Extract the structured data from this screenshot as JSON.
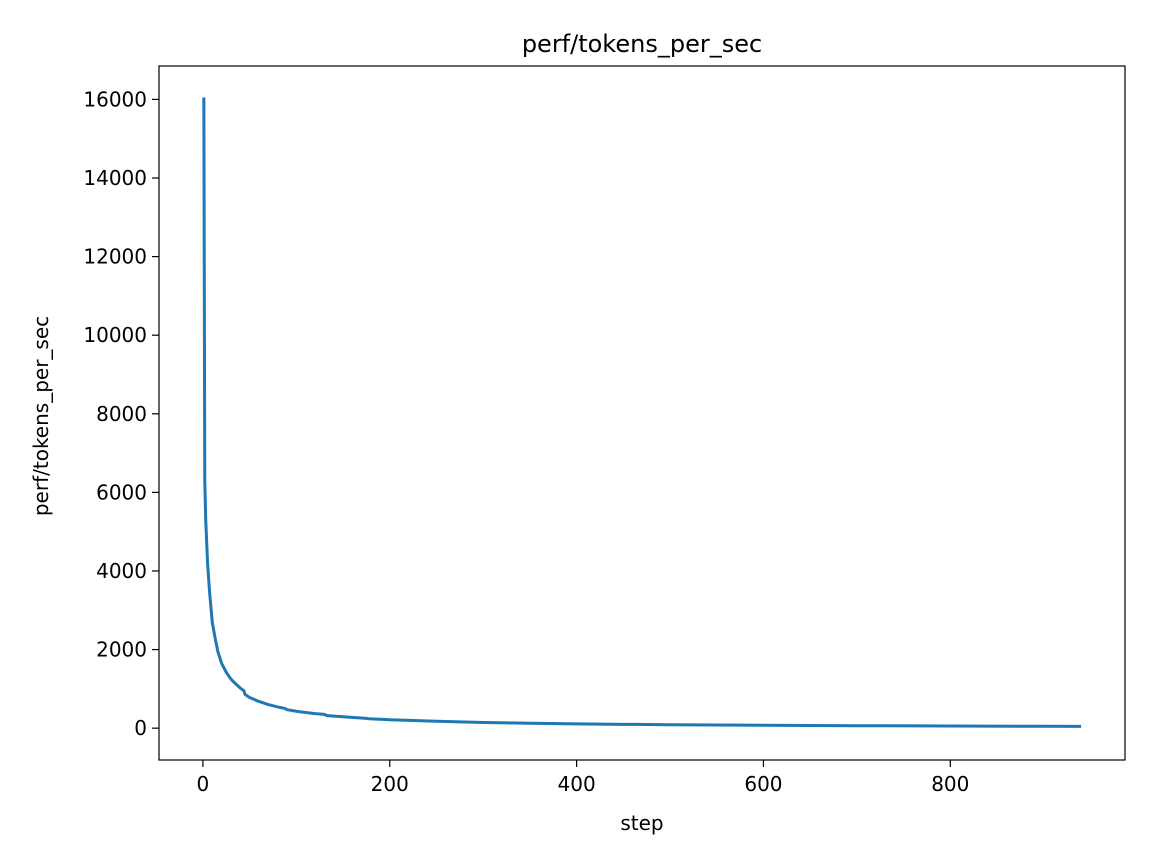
{
  "chart_data": {
    "type": "line",
    "title": "perf/tokens_per_sec",
    "xlabel": "step",
    "ylabel": "perf/tokens_per_sec",
    "xlim": [
      -47,
      987
    ],
    "ylim": [
      -810,
      16850
    ],
    "x_ticks": [
      0,
      200,
      400,
      600,
      800
    ],
    "y_ticks": [
      0,
      2000,
      4000,
      6000,
      8000,
      10000,
      12000,
      14000,
      16000
    ],
    "x_tick_labels": [
      "0",
      "200",
      "400",
      "600",
      "800"
    ],
    "y_tick_labels": [
      "0",
      "2000",
      "4000",
      "6000",
      "8000",
      "10000",
      "12000",
      "14000",
      "16000"
    ],
    "grid": false,
    "legend": "none",
    "series": [
      {
        "color": "#1f77b4",
        "x": [
          1,
          2,
          3,
          5,
          7,
          10,
          13,
          16,
          20,
          25,
          30,
          35,
          40,
          44,
          45,
          50,
          60,
          70,
          80,
          88,
          90,
          100,
          110,
          120,
          130,
          133,
          135,
          150,
          175,
          178,
          200,
          250,
          300,
          350,
          400,
          450,
          500,
          600,
          700,
          800,
          900,
          940
        ],
        "y": [
          16050,
          6300,
          5300,
          4200,
          3500,
          2700,
          2300,
          1950,
          1650,
          1420,
          1250,
          1130,
          1020,
          950,
          860,
          780,
          680,
          600,
          540,
          500,
          470,
          430,
          400,
          370,
          350,
          320,
          315,
          290,
          250,
          240,
          215,
          175,
          145,
          125,
          110,
          98,
          88,
          73,
          63,
          55,
          48,
          45
        ]
      }
    ]
  }
}
